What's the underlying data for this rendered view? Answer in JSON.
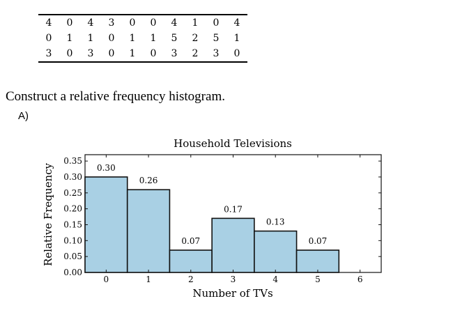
{
  "table": {
    "rows": [
      [
        "4",
        "0",
        "4",
        "3",
        "0",
        "0",
        "4",
        "1",
        "0",
        "4"
      ],
      [
        "0",
        "1",
        "1",
        "0",
        "1",
        "1",
        "5",
        "2",
        "5",
        "1"
      ],
      [
        "3",
        "0",
        "3",
        "0",
        "1",
        "0",
        "3",
        "2",
        "3",
        "0"
      ]
    ]
  },
  "question": {
    "prompt": "Construct a relative frequency histogram.",
    "option_label": "A)"
  },
  "chart_data": {
    "type": "bar",
    "title": "Household Televisions",
    "xlabel": "Number of TVs",
    "ylabel": "Relative Frequency",
    "categories": [
      "0",
      "1",
      "2",
      "3",
      "4",
      "5"
    ],
    "values": [
      0.3,
      0.26,
      0.07,
      0.17,
      0.13,
      0.07
    ],
    "value_labels": [
      "0.30",
      "0.26",
      "0.07",
      "0.17",
      "0.13",
      "0.07"
    ],
    "x_ticks": [
      "0",
      "1",
      "2",
      "3",
      "4",
      "5",
      "6"
    ],
    "y_ticks": [
      "0.00",
      "0.05",
      "0.10",
      "0.15",
      "0.20",
      "0.25",
      "0.30",
      "0.35"
    ],
    "ylim": [
      0,
      0.37
    ],
    "bar_color": "#a9d0e4",
    "edge_color": "#111111",
    "grid": false
  }
}
